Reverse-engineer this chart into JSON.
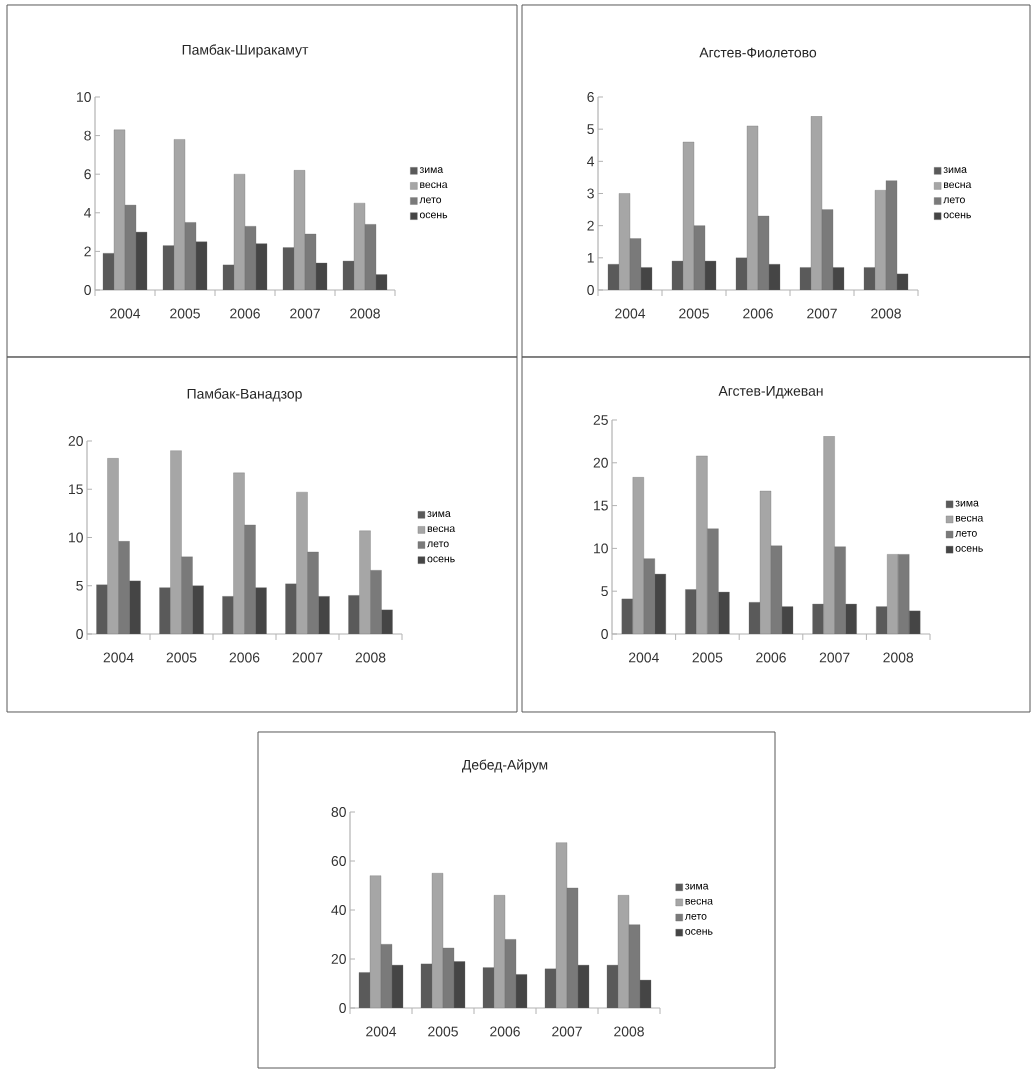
{
  "chart_data": [
    {
      "type": "bar",
      "title": "Памбак-Ширакамут",
      "categories": [
        "2004",
        "2005",
        "2006",
        "2007",
        "2008"
      ],
      "ylim": [
        0,
        10
      ],
      "yticks": [
        0,
        2,
        4,
        6,
        8,
        10
      ],
      "legend": "right",
      "series": [
        {
          "name": "зима",
          "color": "#5a5a5a",
          "values": [
            1.9,
            2.3,
            1.3,
            2.2,
            1.5
          ]
        },
        {
          "name": "весна",
          "color": "#a6a6a6",
          "values": [
            8.3,
            7.8,
            6.0,
            6.2,
            4.5
          ]
        },
        {
          "name": "лето",
          "color": "#7a7a7a",
          "values": [
            4.4,
            3.5,
            3.3,
            2.9,
            3.4
          ]
        },
        {
          "name": "осень",
          "color": "#454545",
          "values": [
            3.0,
            2.5,
            2.4,
            1.4,
            0.8
          ]
        }
      ]
    },
    {
      "type": "bar",
      "title": "Агстев-Фиолетово",
      "categories": [
        "2004",
        "2005",
        "2006",
        "2007",
        "2008"
      ],
      "ylim": [
        0,
        6
      ],
      "yticks": [
        0,
        1,
        2,
        3,
        4,
        5,
        6
      ],
      "legend": "right",
      "series": [
        {
          "name": "зима",
          "color": "#5a5a5a",
          "values": [
            0.8,
            0.9,
            1.0,
            0.7,
            0.7
          ]
        },
        {
          "name": "весна",
          "color": "#a6a6a6",
          "values": [
            3.0,
            4.6,
            5.1,
            5.4,
            3.1
          ]
        },
        {
          "name": "лето",
          "color": "#7a7a7a",
          "values": [
            1.6,
            2.0,
            2.3,
            2.5,
            3.4
          ]
        },
        {
          "name": "осень",
          "color": "#454545",
          "values": [
            0.7,
            0.9,
            0.8,
            0.7,
            0.5
          ]
        }
      ]
    },
    {
      "type": "bar",
      "title": "Памбак-Ванадзор",
      "categories": [
        "2004",
        "2005",
        "2006",
        "2007",
        "2008"
      ],
      "ylim": [
        0,
        20
      ],
      "yticks": [
        0,
        5,
        10,
        15,
        20
      ],
      "legend": "right",
      "series": [
        {
          "name": "зима",
          "color": "#5a5a5a",
          "values": [
            5.1,
            4.8,
            3.9,
            5.2,
            4.0
          ]
        },
        {
          "name": "весна",
          "color": "#a6a6a6",
          "values": [
            18.2,
            19.0,
            16.7,
            14.7,
            10.7
          ]
        },
        {
          "name": "лето",
          "color": "#7a7a7a",
          "values": [
            9.6,
            8.0,
            11.3,
            8.5,
            6.6
          ]
        },
        {
          "name": "осень",
          "color": "#454545",
          "values": [
            5.5,
            5.0,
            4.8,
            3.9,
            2.5
          ]
        }
      ]
    },
    {
      "type": "bar",
      "title": "Агстев-Иджеван",
      "categories": [
        "2004",
        "2005",
        "2006",
        "2007",
        "2008"
      ],
      "ylim": [
        0,
        25
      ],
      "yticks": [
        0,
        5,
        10,
        15,
        20,
        25
      ],
      "legend": "right",
      "series": [
        {
          "name": "зима",
          "color": "#5a5a5a",
          "values": [
            4.1,
            5.2,
            3.7,
            3.5,
            3.2
          ]
        },
        {
          "name": "весна",
          "color": "#a6a6a6",
          "values": [
            18.3,
            20.8,
            16.7,
            23.1,
            9.3
          ]
        },
        {
          "name": "лето",
          "color": "#7a7a7a",
          "values": [
            8.8,
            12.3,
            10.3,
            10.2,
            9.3
          ]
        },
        {
          "name": "осень",
          "color": "#454545",
          "values": [
            7.0,
            4.9,
            3.2,
            3.5,
            2.7
          ]
        }
      ]
    },
    {
      "type": "bar",
      "title": "Дебед-Айрум",
      "categories": [
        "2004",
        "2005",
        "2006",
        "2007",
        "2008"
      ],
      "ylim": [
        0,
        80
      ],
      "yticks": [
        0,
        20,
        40,
        60,
        80
      ],
      "legend": "right",
      "series": [
        {
          "name": "зима",
          "color": "#5a5a5a",
          "values": [
            14.5,
            18,
            16.5,
            16,
            17.5
          ]
        },
        {
          "name": "весна",
          "color": "#a6a6a6",
          "values": [
            54,
            55,
            46,
            67.5,
            46
          ]
        },
        {
          "name": "лето",
          "color": "#7a7a7a",
          "values": [
            26,
            24.5,
            28,
            49,
            34
          ]
        },
        {
          "name": "осень",
          "color": "#454545",
          "values": [
            17.5,
            19,
            13.7,
            17.5,
            11.4
          ]
        }
      ]
    }
  ]
}
